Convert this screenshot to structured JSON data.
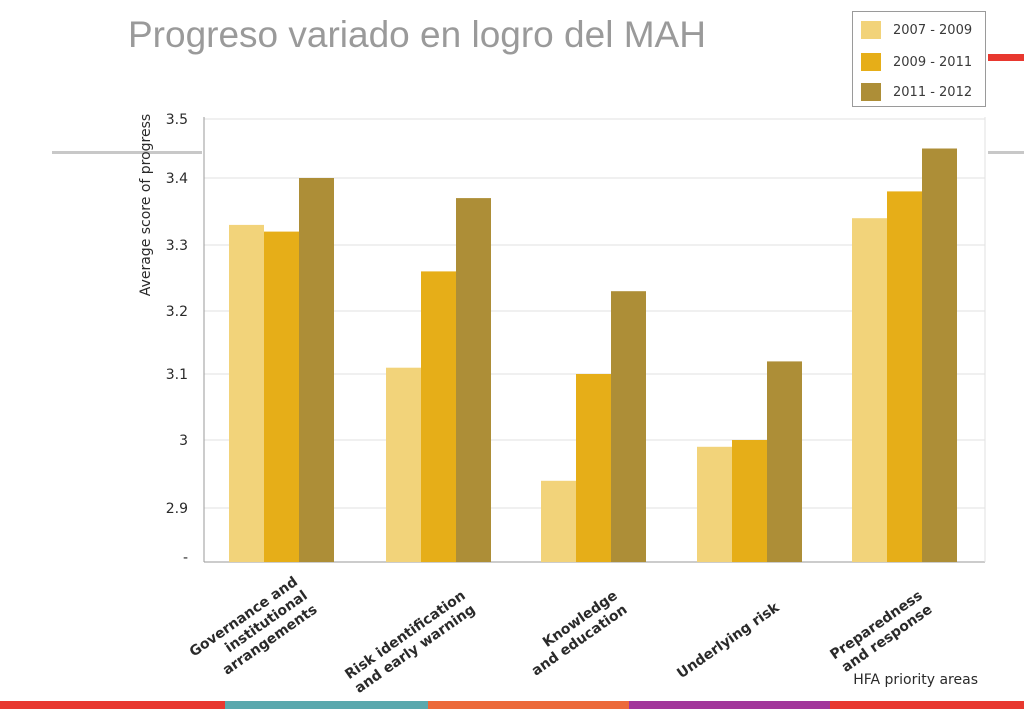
{
  "slide": {
    "title": "Progreso variado en logro del MAH"
  },
  "chart_data": {
    "type": "bar",
    "ylabel": "Average score of progress",
    "xlabel": "HFA priority areas",
    "y_tick_labels": [
      "-",
      "2.9",
      "3",
      "3.1",
      "3.2",
      "3.3",
      "3.4",
      "3.5"
    ],
    "grid": true,
    "legend_position": "top-right",
    "categories": [
      [
        "Governance and",
        "institutional",
        "arrangements"
      ],
      [
        "Risk identification",
        "and early warning"
      ],
      [
        "Knowledge",
        "and education"
      ],
      [
        "Underlying risk"
      ],
      [
        "Preparedness",
        "and response"
      ]
    ],
    "series": [
      {
        "name": "2007 - 2009",
        "color": "#f2d37a",
        "values": [
          3.33,
          3.11,
          2.94,
          2.99,
          3.34
        ]
      },
      {
        "name": "2009 - 2011",
        "color": "#e6ae18",
        "values": [
          3.32,
          3.26,
          3.1,
          3.0,
          3.38
        ]
      },
      {
        "name": "2011 - 2012",
        "color": "#ad8e37",
        "values": [
          3.4,
          3.37,
          3.23,
          3.12,
          3.45
        ]
      }
    ]
  },
  "footer_colors": [
    "#e8382f",
    "#5aa8ad",
    "#ec6a3a",
    "#a2359a",
    "#e8382f"
  ]
}
